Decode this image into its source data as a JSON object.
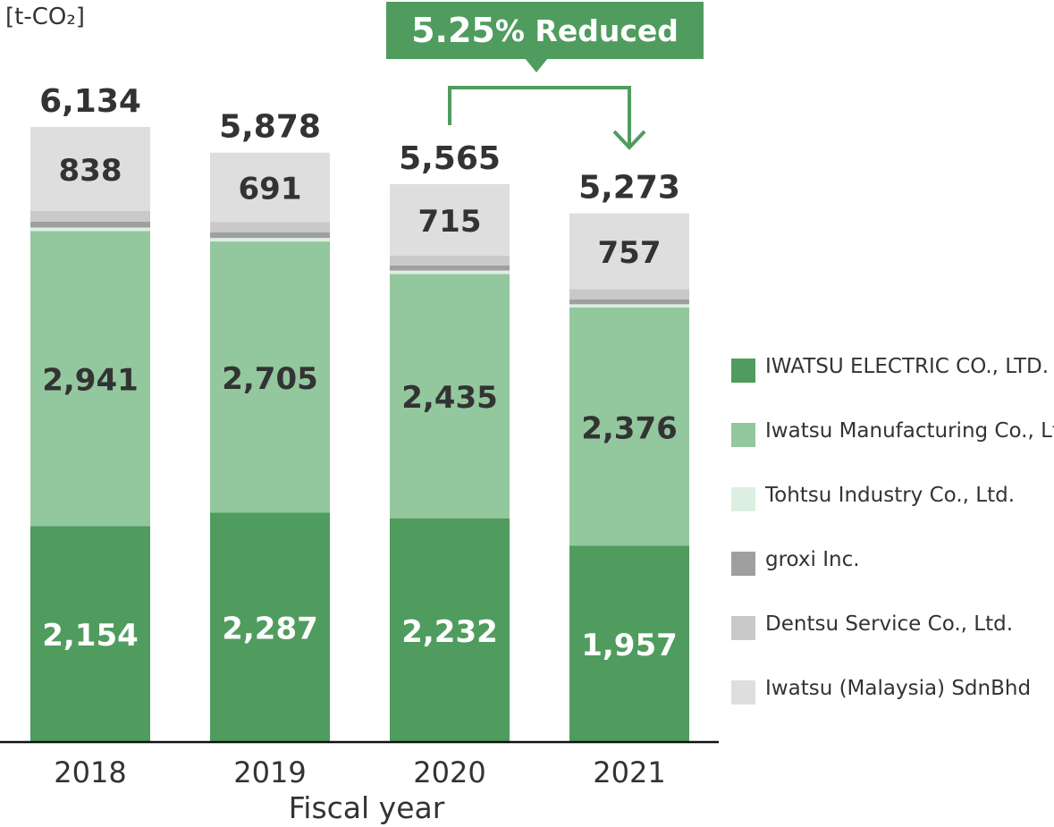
{
  "chart_data": {
    "type": "bar",
    "stacked": true,
    "unit_label": "[t-CO₂]",
    "xlabel": "Fiscal year",
    "ylabel": "",
    "categories": [
      "2018",
      "2019",
      "2020",
      "2021"
    ],
    "totals": [
      6134,
      5878,
      5565,
      5273
    ],
    "series": [
      {
        "name": "IWATSU ELECTRIC CO., LTD.",
        "color": "#4f9c5e",
        "values": [
          2154,
          2287,
          2232,
          1957
        ],
        "labels": [
          "2,154",
          "2,287",
          "2,232",
          "1,957"
        ],
        "label_color": "#ffffff"
      },
      {
        "name": "Iwatsu Manufacturing Co., Ltd.",
        "color": "#93c79e",
        "values": [
          2941,
          2705,
          2435,
          2376
        ],
        "labels": [
          "2,941",
          "2,705",
          "2,435",
          "2,376"
        ],
        "label_color": "#333333"
      },
      {
        "name": "Tohtsu Industry Co., Ltd.",
        "color": "#dcefe0",
        "values": [
          36,
          35,
          35,
          33
        ]
      },
      {
        "name": "groxi Inc.",
        "color": "#a09fa0",
        "values": [
          60,
          55,
          52,
          50
        ]
      },
      {
        "name": "Dentsu Service Co., Ltd.",
        "color": "#c9c9c9",
        "values": [
          105,
          105,
          96,
          100
        ]
      },
      {
        "name": "Iwatsu (Malaysia) SdnBhd",
        "color": "#dedede",
        "values": [
          838,
          691,
          715,
          757
        ],
        "labels": [
          "838",
          "691",
          "715",
          "757"
        ],
        "label_color": "#333333"
      }
    ],
    "total_labels": [
      "6,134",
      "5,878",
      "5,565",
      "5,273"
    ],
    "ylim": [
      0,
      6134
    ],
    "legend_position": "right",
    "grid": false,
    "annotation": {
      "value": "5.25",
      "suffix": "% Reduced",
      "from": "2020",
      "to": "2021",
      "color": "#4f9c5e"
    }
  }
}
